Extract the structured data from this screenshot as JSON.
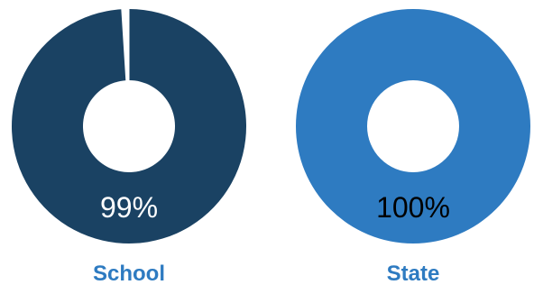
{
  "chart_data": [
    {
      "type": "pie",
      "variant": "donut",
      "name": "School",
      "value_percent": 99,
      "label": "99%",
      "colors": {
        "fill": "#1a4263",
        "remainder": "#ffffff",
        "value_text": "#ffffff",
        "name_text": "#2e7bc1"
      }
    },
    {
      "type": "pie",
      "variant": "donut",
      "name": "State",
      "value_percent": 100,
      "label": "100%",
      "colors": {
        "fill": "#2e7bc1",
        "remainder": "#ffffff",
        "value_text": "#000000",
        "name_text": "#2e7bc1"
      }
    }
  ]
}
